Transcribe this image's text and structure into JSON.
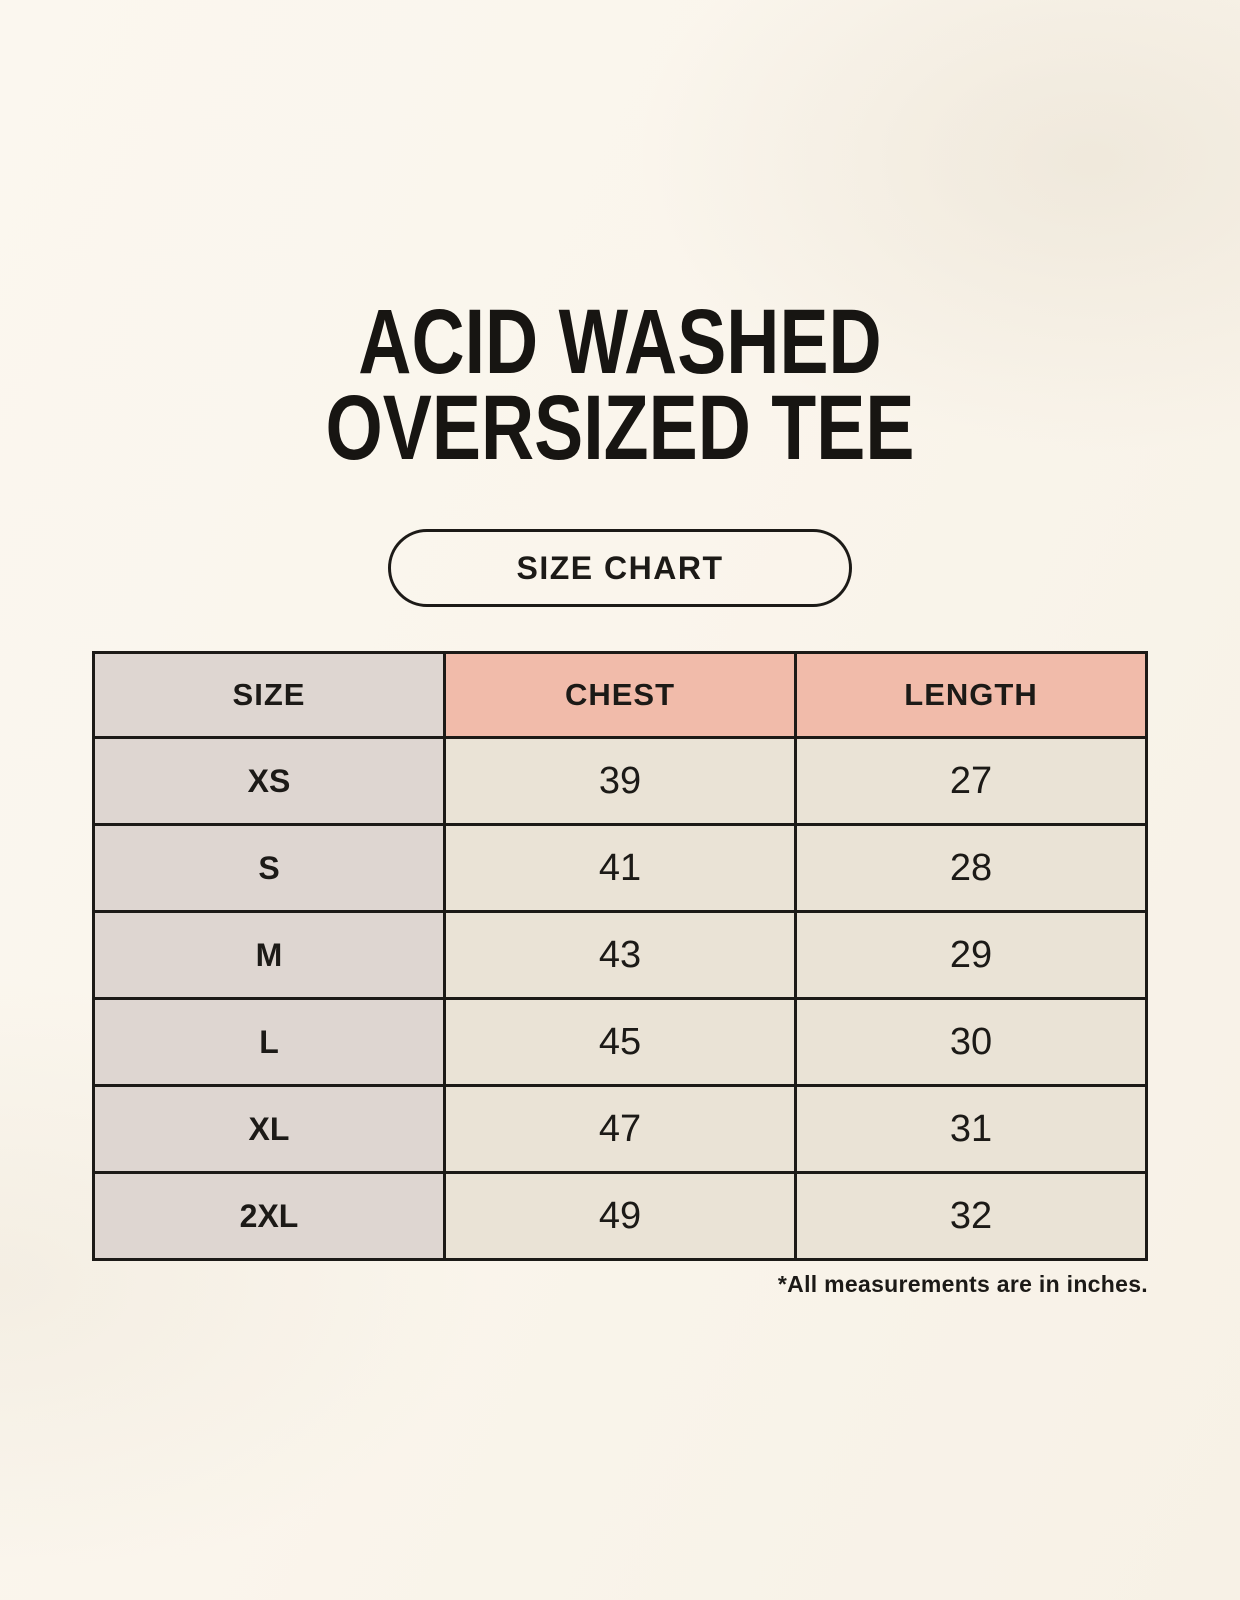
{
  "header": {
    "title_line1": "ACID WASHED",
    "title_line2": "OVERSIZED TEE",
    "button_label": "SIZE CHART"
  },
  "colors": {
    "page_background": "#faf5ec",
    "size_column_bg": "#ded6d1",
    "accent_header_bg": "#f1bbaa",
    "data_cell_bg": "#eae3d6",
    "border_and_text": "#1c1a17"
  },
  "chart_data": {
    "type": "table",
    "title": "ACID WASHED OVERSIZED TEE — SIZE CHART",
    "columns": [
      "SIZE",
      "CHEST",
      "LENGTH"
    ],
    "rows": [
      {
        "size": "XS",
        "chest": "39",
        "length": "27"
      },
      {
        "size": "S",
        "chest": "41",
        "length": "28"
      },
      {
        "size": "M",
        "chest": "43",
        "length": "29"
      },
      {
        "size": "L",
        "chest": "45",
        "length": "30"
      },
      {
        "size": "XL",
        "chest": "47",
        "length": "31"
      },
      {
        "size": "2XL",
        "chest": "49",
        "length": "32"
      }
    ],
    "note": "*All measurements are in inches.",
    "units": "inches",
    "layout": "3 equal columns; first column taupe, measurement headers salmon, body cells cream; black 3px grid borders"
  }
}
